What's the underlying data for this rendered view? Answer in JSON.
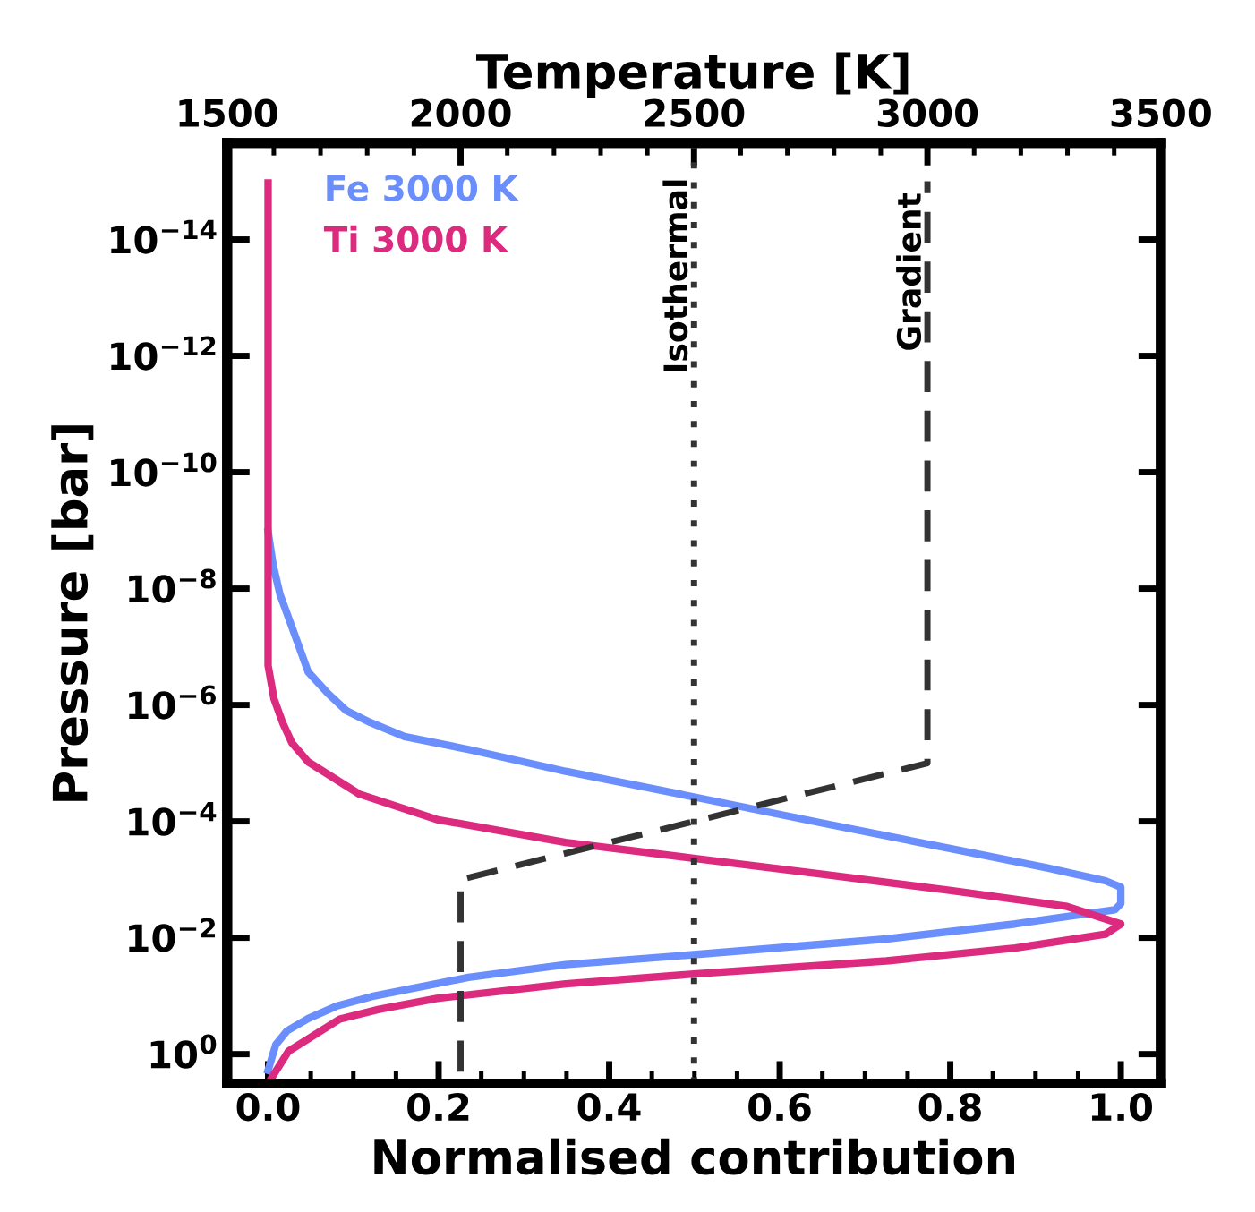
{
  "chart_data": {
    "type": "line",
    "xlabel": "Normalised contribution",
    "ylabel": "Pressure [bar]",
    "x2label": "Temperature [K]",
    "log": "y",
    "xlim": [
      -0.048,
      1.047
    ],
    "xticks": [
      {
        "value": 0,
        "label": "0.0"
      },
      0.2,
      0.4,
      0.6,
      0.8,
      {
        "value": 1,
        "label": "1.0"
      }
    ],
    "x2lim": [
      1500,
      3500
    ],
    "x2ticks": [
      1500,
      2000,
      2500,
      3000,
      3500
    ],
    "ylim": [
      3.2,
      2.2e-16
    ],
    "yticks": [
      {
        "value": 1,
        "label": "10$^{0}$"
      },
      {
        "value": 0.01,
        "label": "10$^{−2}$"
      },
      {
        "value": 0.0001,
        "label": "10$^{−4}$"
      },
      {
        "value": 1e-06,
        "label": "10$^{−6}$"
      },
      {
        "value": 1e-08,
        "label": "10$^{−8}$"
      },
      {
        "value": 1e-10,
        "label": "10$^{−10}$"
      },
      {
        "value": 1e-12,
        "label": "10$^{−12}$"
      },
      {
        "value": 1e-14,
        "label": "10$^{−14}$"
      }
    ],
    "legend": "top left",
    "ref_lines": [
      {
        "axis": "x2",
        "value": 2500,
        "label": "Isothermal",
        "color": "#333333",
        "line_style": "dotted"
      }
    ],
    "series": [
      {
        "name": "Fe 3000 K",
        "color": "#6a8ffc",
        "line_style": "solid",
        "x": [
          0,
          0.006,
          0.014,
          0.028,
          0.047,
          0.07,
          0.092,
          0.12,
          0.16,
          0.235,
          0.349,
          0.499,
          0.65,
          0.801,
          0.914,
          0.982,
          1.0,
          1.0,
          0.993,
          0.876,
          0.725,
          0.499,
          0.349,
          0.235,
          0.122,
          0.08,
          0.047,
          0.022,
          0.009,
          0.0
        ],
        "values": [
          1.05e-09,
          4e-09,
          1.26e-08,
          4.6e-08,
          2.7e-07,
          6.3e-07,
          1.26e-06,
          2e-06,
          3.5e-06,
          5.8e-06,
          1.38e-05,
          3.8e-05,
          0.000107,
          0.000295,
          0.00063,
          0.00105,
          0.00135,
          0.0026,
          0.0033,
          0.0058,
          0.0105,
          0.0195,
          0.029,
          0.048,
          0.102,
          0.15,
          0.245,
          0.4,
          0.69,
          1.9
        ]
      },
      {
        "name": "Ti 3000 K",
        "color": "#dc2a7f",
        "line_style": "solid",
        "x": [
          0,
          0,
          0,
          0.007,
          0.017,
          0.028,
          0.047,
          0.107,
          0.198,
          0.349,
          0.499,
          0.65,
          0.801,
          0.937,
          1.0,
          0.982,
          0.876,
          0.725,
          0.499,
          0.349,
          0.198,
          0.13,
          0.084,
          0.024,
          0
        ],
        "values": [
          1.07e-15,
          4.6e-08,
          2.1e-07,
          7.9e-07,
          2e-06,
          4.5e-06,
          9.5e-06,
          3.4e-05,
          9.3e-05,
          0.00023,
          0.00043,
          0.00081,
          0.00155,
          0.0029,
          0.0058,
          0.0087,
          0.015,
          0.025,
          0.042,
          0.062,
          0.11,
          0.17,
          0.25,
          0.89,
          3.2
        ]
      },
      {
        "name": "Gradient",
        "color": "#333333",
        "line_style": "dashed",
        "axis": "x2",
        "x": [
          2000,
          2000,
          3000,
          3000
        ],
        "values": [
          2,
          0.001,
          1e-05,
          1e-15
        ]
      }
    ]
  }
}
